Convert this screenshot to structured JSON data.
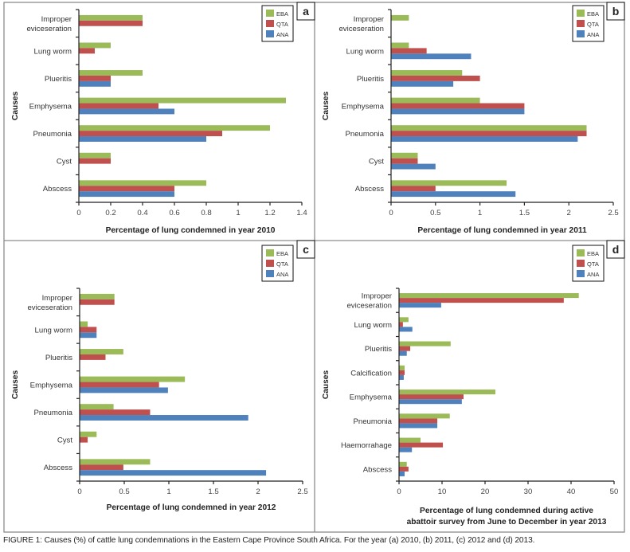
{
  "figure": {
    "caption": "FIGURE 1: Causes (%) of cattle lung condemnations in the Eastern Cape Province South Africa. For the year (a) 2010, (b) 2011, (c) 2012 and (d) 2013."
  },
  "colors": {
    "EBA": "#9BBB59",
    "QTA": "#C0504D",
    "ANA": "#4F81BD"
  },
  "chart_data": [
    {
      "panel": "a",
      "type": "bar",
      "orientation": "horizontal",
      "title": "",
      "xlabel": "Percentage of lung condemned in year 2010",
      "ylabel": "Causes",
      "xlim": [
        0,
        1.4
      ],
      "xticks": [
        "0",
        "0.2",
        "0.4",
        "0.6",
        "0.8",
        "1",
        "1.2",
        "1.4"
      ],
      "xtick_values": [
        0,
        0.2,
        0.4,
        0.6,
        0.8,
        1.0,
        1.2,
        1.4
      ],
      "legend": [
        "EBA",
        "QTA",
        "ANA"
      ],
      "legend_position": "top-right",
      "categories": [
        "Improper eviceseration",
        "Lung worm",
        "Plueritis",
        "Emphysema",
        "Pneumonia",
        "Cyst",
        "Abscess"
      ],
      "category_lines": [
        [
          "Improper",
          "eviceseration"
        ],
        [
          "Lung worm"
        ],
        [
          "Plueritis"
        ],
        [
          "Emphysema"
        ],
        [
          "Pneumonia"
        ],
        [
          "Cyst"
        ],
        [
          "Abscess"
        ]
      ],
      "series": [
        {
          "name": "EBA",
          "values": [
            0.4,
            0.2,
            0.4,
            1.3,
            1.2,
            0.2,
            0.8
          ]
        },
        {
          "name": "QTA",
          "values": [
            0.4,
            0.1,
            0.2,
            0.5,
            0.9,
            0.2,
            0.6
          ]
        },
        {
          "name": "ANA",
          "values": [
            0,
            0,
            0.2,
            0.6,
            0.8,
            0,
            0.6
          ]
        }
      ]
    },
    {
      "panel": "b",
      "type": "bar",
      "orientation": "horizontal",
      "title": "",
      "xlabel": "Percentage of lung condemned in year 2011",
      "ylabel": "Causes",
      "xlim": [
        0,
        2.5
      ],
      "xticks": [
        "0",
        "0.5",
        "1",
        "1.5",
        "2",
        "2.5"
      ],
      "xtick_values": [
        0,
        0.5,
        1.0,
        1.5,
        2.0,
        2.5
      ],
      "legend": [
        "EBA",
        "QTA",
        "ANA"
      ],
      "legend_position": "top-right",
      "categories": [
        "Improper eviceseration",
        "Lung worm",
        "Plueritis",
        "Emphysema",
        "Pneumonia",
        "Cyst",
        "Abscess"
      ],
      "category_lines": [
        [
          "Improper",
          "eviceseration"
        ],
        [
          "Lung worm"
        ],
        [
          "Plueritis"
        ],
        [
          "Emphysema"
        ],
        [
          "Pneumonia"
        ],
        [
          "Cyst"
        ],
        [
          "Abscess"
        ]
      ],
      "series": [
        {
          "name": "EBA",
          "values": [
            0.2,
            0.2,
            0.8,
            1.0,
            2.2,
            0.3,
            1.3
          ]
        },
        {
          "name": "QTA",
          "values": [
            0,
            0.4,
            1.0,
            1.5,
            2.2,
            0.3,
            0.5
          ]
        },
        {
          "name": "ANA",
          "values": [
            0,
            0.9,
            0.7,
            1.5,
            2.1,
            0.5,
            1.4
          ]
        }
      ]
    },
    {
      "panel": "c",
      "type": "bar",
      "orientation": "horizontal",
      "title": "",
      "xlabel": "Percentage of lung condemned in year 2012",
      "ylabel": "Causes",
      "xlim": [
        0,
        2.5
      ],
      "xticks": [
        "0",
        "0.5",
        "1",
        "1.5",
        "2",
        "2.5"
      ],
      "xtick_values": [
        0,
        0.5,
        1.0,
        1.5,
        2.0,
        2.5
      ],
      "legend": [
        "EBA",
        "QTA",
        "ANA"
      ],
      "legend_position": "top-right",
      "categories": [
        "Improper eviceseration",
        "Lung worm",
        "Plueritis",
        "Emphysema",
        "Pneumonia",
        "Cyst",
        "Abscess"
      ],
      "category_lines": [
        [
          "Improper",
          "eviceseration"
        ],
        [
          "Lung worm"
        ],
        [
          "Plueritis"
        ],
        [
          "Emphysema"
        ],
        [
          "Pneumonia"
        ],
        [
          "Cyst"
        ],
        [
          "Abscess"
        ]
      ],
      "series": [
        {
          "name": "EBA",
          "values": [
            0.39,
            0.09,
            0.49,
            1.18,
            0.38,
            0.19,
            0.79
          ]
        },
        {
          "name": "QTA",
          "values": [
            0.39,
            0.19,
            0.29,
            0.89,
            0.79,
            0.09,
            0.49
          ]
        },
        {
          "name": "ANA",
          "values": [
            0,
            0.19,
            0,
            0.99,
            1.89,
            0,
            2.09
          ]
        }
      ]
    },
    {
      "panel": "d",
      "type": "bar",
      "orientation": "horizontal",
      "title": "",
      "xlabel": "Percentage of lung condemned during active abattoir survey from June to December in year 2013",
      "xlabel_lines": [
        "Percentage of lung condemned during active",
        "abattoir survey from June to December in year 2013"
      ],
      "ylabel": "Causes",
      "xlim": [
        0,
        50
      ],
      "xticks": [
        "0",
        "10",
        "20",
        "30",
        "40",
        "50"
      ],
      "xtick_values": [
        0,
        10,
        20,
        30,
        40,
        50
      ],
      "legend": [
        "EBA",
        "QTA",
        "ANA"
      ],
      "legend_position": "top-right",
      "categories": [
        "Improper eviceseration",
        "Lung worm",
        "Plueritis",
        "Calcification",
        "Emphysema",
        "Pneumonia",
        "Haemorrahage",
        "Abscess"
      ],
      "category_lines": [
        [
          "Improper",
          "eviceseration"
        ],
        [
          "Lung worm"
        ],
        [
          "Plueritis"
        ],
        [
          "Calcification"
        ],
        [
          "Emphysema"
        ],
        [
          "Pneumonia"
        ],
        [
          "Haemorrahage"
        ],
        [
          "Abscess"
        ]
      ],
      "series": [
        {
          "name": "EBA",
          "values": [
            41.8,
            2.2,
            12.0,
            1.3,
            22.4,
            11.8,
            5.0,
            1.8
          ]
        },
        {
          "name": "QTA",
          "values": [
            38.3,
            0.9,
            2.6,
            1.3,
            15.0,
            8.9,
            10.2,
            2.2
          ]
        },
        {
          "name": "ANA",
          "values": [
            9.8,
            3.1,
            1.8,
            1.1,
            14.6,
            8.9,
            3.0,
            1.3
          ]
        }
      ]
    }
  ]
}
